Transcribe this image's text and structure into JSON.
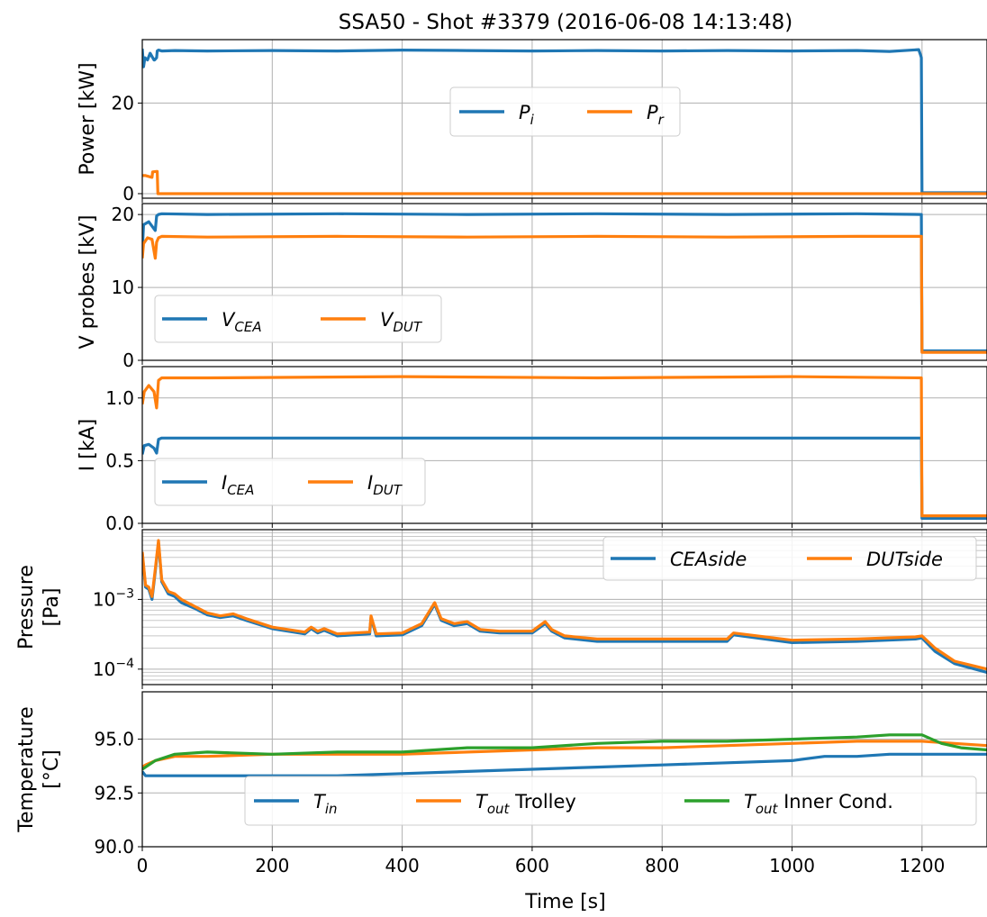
{
  "title": "SSA50 - Shot #3379 (2016-06-08 14:13:48)",
  "chart_data": [
    {
      "type": "line",
      "ylabel": "Power [kW]",
      "xlim": [
        0,
        1300
      ],
      "ylim": [
        -1,
        34
      ],
      "yticks": [
        0,
        20
      ],
      "grid": true,
      "legend_placement": "upper-center",
      "series": [
        {
          "name": "Pi",
          "name_main": "P",
          "name_sub": "i",
          "color": "#1f77b4",
          "x": [
            0,
            2,
            4,
            8,
            12,
            18,
            19,
            22,
            23,
            25,
            30,
            50,
            100,
            200,
            300,
            400,
            500,
            600,
            700,
            800,
            900,
            1000,
            1100,
            1150,
            1195,
            1198,
            1199,
            1200,
            1202,
            1300
          ],
          "y": [
            32,
            28,
            30,
            29.5,
            31,
            29.5,
            29.5,
            30,
            31.5,
            31.7,
            31.5,
            31.6,
            31.5,
            31.6,
            31.5,
            31.7,
            31.6,
            31.5,
            31.6,
            31.5,
            31.6,
            31.5,
            31.6,
            31.4,
            31.8,
            30.5,
            30,
            0.2,
            0.2,
            0.2
          ]
        },
        {
          "name": "Pr",
          "name_main": "P",
          "name_sub": "r",
          "color": "#ff7f0e",
          "x": [
            0,
            5,
            15,
            16,
            22,
            23,
            24,
            25,
            100,
            1200,
            1300
          ],
          "y": [
            4,
            4,
            3.6,
            4.8,
            4.9,
            4.9,
            0,
            0,
            0,
            0,
            0
          ]
        }
      ]
    },
    {
      "type": "line",
      "ylabel": "V probes [kV]",
      "xlim": [
        0,
        1300
      ],
      "ylim": [
        0,
        21.5
      ],
      "yticks": [
        0,
        10,
        20
      ],
      "grid": true,
      "legend_placement": "lower-left",
      "series": [
        {
          "name": "VCEA",
          "name_main": "V",
          "name_sub": "CEA",
          "color": "#1f77b4",
          "x": [
            0,
            2,
            10,
            20,
            22,
            25,
            30,
            100,
            300,
            500,
            700,
            900,
            1100,
            1199,
            1200,
            1300
          ],
          "y": [
            15,
            18.6,
            19,
            17.8,
            19.8,
            20,
            20.1,
            20,
            20.1,
            20,
            20.1,
            20,
            20.1,
            20,
            1.3,
            1.3
          ]
        },
        {
          "name": "VDUT",
          "name_main": "V",
          "name_sub": "DUT",
          "color": "#ff7f0e",
          "x": [
            0,
            2,
            8,
            15,
            20,
            22,
            25,
            30,
            100,
            300,
            500,
            700,
            900,
            1100,
            1199,
            1200,
            1300
          ],
          "y": [
            14,
            16,
            16.8,
            16.6,
            14,
            16.2,
            16.8,
            17,
            16.9,
            17,
            16.9,
            17,
            16.9,
            17,
            17,
            1.1,
            1.1
          ]
        }
      ]
    },
    {
      "type": "line",
      "ylabel": "I [kA]",
      "xlim": [
        0,
        1300
      ],
      "ylim": [
        0,
        1.25
      ],
      "yticks": [
        0.0,
        0.5,
        1.0
      ],
      "ytick_labels": [
        "0.0",
        "0.5",
        "1.0"
      ],
      "grid": true,
      "legend_placement": "lower-left",
      "series": [
        {
          "name": "ICEA",
          "name_main": "I",
          "name_sub": "CEA",
          "color": "#1f77b4",
          "x": [
            0,
            3,
            10,
            18,
            22,
            25,
            30,
            100,
            400,
            700,
            1000,
            1199,
            1200,
            1300
          ],
          "y": [
            0.55,
            0.62,
            0.63,
            0.6,
            0.56,
            0.67,
            0.68,
            0.68,
            0.68,
            0.68,
            0.68,
            0.68,
            0.04,
            0.04
          ]
        },
        {
          "name": "IDUT",
          "name_main": "I",
          "name_sub": "DUT",
          "color": "#ff7f0e",
          "x": [
            0,
            3,
            10,
            18,
            22,
            25,
            30,
            100,
            400,
            700,
            1000,
            1199,
            1200,
            1300
          ],
          "y": [
            0.95,
            1.05,
            1.1,
            1.05,
            0.92,
            1.14,
            1.16,
            1.16,
            1.17,
            1.16,
            1.17,
            1.16,
            0.06,
            0.06
          ]
        }
      ]
    },
    {
      "type": "line",
      "ylabel": "Pressure [Pa]",
      "ylabel_lines": [
        "Pressure",
        "[Pa]"
      ],
      "xlim": [
        0,
        1300
      ],
      "ylim": [
        6e-05,
        0.01
      ],
      "yscale": "log",
      "yticks": [
        0.0001,
        0.001
      ],
      "ytick_labels": [
        "10−4",
        "10−3"
      ],
      "grid": true,
      "legend_placement": "upper-right",
      "series": [
        {
          "name": "CEAside",
          "color": "#1f77b4",
          "x": [
            0,
            5,
            10,
            15,
            20,
            25,
            30,
            40,
            50,
            60,
            80,
            100,
            120,
            140,
            160,
            200,
            250,
            260,
            270,
            280,
            300,
            350,
            352,
            360,
            400,
            430,
            450,
            460,
            480,
            500,
            520,
            550,
            600,
            620,
            630,
            650,
            700,
            800,
            900,
            910,
            1000,
            1100,
            1190,
            1200,
            1220,
            1250,
            1300
          ],
          "y": [
            0.0045,
            0.0015,
            0.0014,
            0.001,
            0.0025,
            0.0065,
            0.0018,
            0.0012,
            0.0011,
            0.0009,
            0.00075,
            0.0006,
            0.00055,
            0.00058,
            0.0005,
            0.00038,
            0.00032,
            0.00038,
            0.00033,
            0.00036,
            0.0003,
            0.00032,
            0.00055,
            0.0003,
            0.00031,
            0.00042,
            0.00085,
            0.0005,
            0.00042,
            0.00045,
            0.00035,
            0.00033,
            0.00033,
            0.00045,
            0.00035,
            0.00028,
            0.00025,
            0.00025,
            0.00025,
            0.00031,
            0.00024,
            0.00025,
            0.00027,
            0.00028,
            0.00018,
            0.00012,
            9e-05
          ]
        },
        {
          "name": "DUTside",
          "color": "#ff7f0e",
          "x": [
            0,
            5,
            10,
            15,
            20,
            25,
            30,
            40,
            50,
            60,
            80,
            100,
            120,
            140,
            160,
            200,
            250,
            260,
            270,
            280,
            300,
            350,
            352,
            360,
            400,
            430,
            450,
            460,
            480,
            500,
            520,
            550,
            600,
            620,
            630,
            650,
            700,
            800,
            900,
            910,
            1000,
            1100,
            1190,
            1200,
            1220,
            1250,
            1300
          ],
          "y": [
            0.0048,
            0.0016,
            0.0015,
            0.0011,
            0.0027,
            0.007,
            0.0019,
            0.0013,
            0.0012,
            0.001,
            0.0008,
            0.00064,
            0.00058,
            0.00062,
            0.00053,
            0.0004,
            0.00034,
            0.0004,
            0.00035,
            0.00038,
            0.00032,
            0.00034,
            0.00058,
            0.00032,
            0.00033,
            0.00045,
            0.0009,
            0.00053,
            0.00045,
            0.00048,
            0.00037,
            0.00035,
            0.00035,
            0.00048,
            0.00037,
            0.0003,
            0.00027,
            0.00027,
            0.00027,
            0.00033,
            0.00026,
            0.00027,
            0.00029,
            0.0003,
            0.0002,
            0.00013,
            0.0001
          ]
        }
      ]
    },
    {
      "type": "line",
      "ylabel": "Temperature [°C]",
      "ylabel_lines": [
        "Temperature",
        "[°C]"
      ],
      "xlabel": "Time [s]",
      "xlim": [
        0,
        1300
      ],
      "xticks": [
        0,
        200,
        400,
        600,
        800,
        1000,
        1200
      ],
      "ylim": [
        90,
        97.2
      ],
      "yticks": [
        90.0,
        92.5,
        95.0
      ],
      "ytick_labels": [
        "90.0",
        "92.5",
        "95.0"
      ],
      "grid": true,
      "legend_placement": "lower-center",
      "series": [
        {
          "name": "Tin",
          "name_main": "T",
          "name_sub": "in",
          "name_extra": "",
          "color": "#1f77b4",
          "x": [
            0,
            5,
            20,
            50,
            100,
            200,
            300,
            400,
            500,
            600,
            700,
            800,
            900,
            1000,
            1050,
            1100,
            1150,
            1200,
            1250,
            1300
          ],
          "y": [
            93.5,
            93.3,
            93.3,
            93.3,
            93.3,
            93.3,
            93.3,
            93.4,
            93.5,
            93.6,
            93.7,
            93.8,
            93.9,
            94.0,
            94.2,
            94.2,
            94.3,
            94.3,
            94.3,
            94.3
          ]
        },
        {
          "name": "Tout Trolley",
          "name_main": "T",
          "name_sub": "out",
          "name_extra": " Trolley",
          "color": "#ff7f0e",
          "x": [
            0,
            5,
            20,
            50,
            100,
            200,
            300,
            400,
            500,
            600,
            700,
            800,
            900,
            1000,
            1100,
            1150,
            1200,
            1250,
            1300
          ],
          "y": [
            93.7,
            93.8,
            94.0,
            94.2,
            94.2,
            94.3,
            94.3,
            94.3,
            94.4,
            94.5,
            94.6,
            94.6,
            94.7,
            94.8,
            94.9,
            94.9,
            94.9,
            94.8,
            94.7
          ]
        },
        {
          "name": "Tout Inner Cond.",
          "name_main": "T",
          "name_sub": "out",
          "name_extra": " Inner Cond.",
          "color": "#2ca02c",
          "x": [
            0,
            5,
            20,
            50,
            100,
            200,
            300,
            400,
            500,
            600,
            700,
            800,
            900,
            1000,
            1100,
            1150,
            1200,
            1230,
            1260,
            1300
          ],
          "y": [
            93.6,
            93.7,
            94.0,
            94.3,
            94.4,
            94.3,
            94.4,
            94.4,
            94.6,
            94.6,
            94.8,
            94.9,
            94.9,
            95.0,
            95.1,
            95.2,
            95.2,
            94.8,
            94.6,
            94.5
          ]
        }
      ]
    }
  ]
}
